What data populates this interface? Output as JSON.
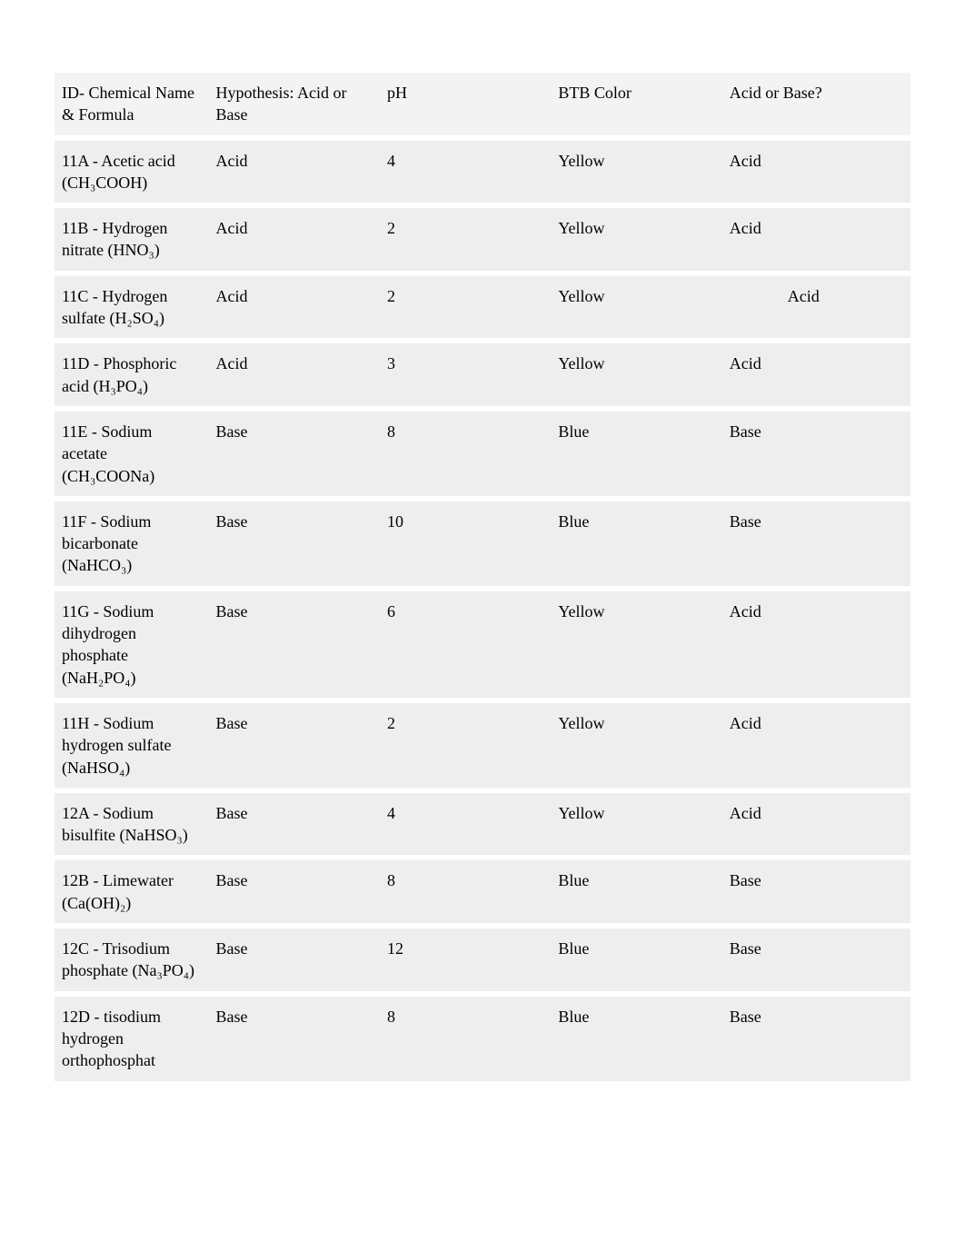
{
  "table": {
    "background_color": "#ffffff",
    "row_bg": "#eeeeee",
    "header_bg": "#f3f3f3",
    "separator_color": "#ffffff",
    "text_color": "#000000",
    "font_family": "Georgia, Times New Roman, serif",
    "font_size_pt": 14,
    "column_widths_pct": [
      18,
      20,
      20,
      20,
      22
    ],
    "columns": [
      "ID- Chemical Name & Formula",
      "Hypothesis: Acid or Base",
      "pH",
      "BTB Color",
      "Acid or Base?"
    ],
    "rows": [
      {
        "id": "11A - Acetic acid (CH₃COOH)",
        "hyp": "Acid",
        "ph": "4",
        "btb": "Yellow",
        "res": "Acid",
        "indent": false
      },
      {
        "id": "11B - Hydrogen nitrate (HNO₃)",
        "hyp": "Acid",
        "ph": "2",
        "btb": "Yellow",
        "res": "Acid",
        "indent": false
      },
      {
        "id": "11C - Hydrogen sulfate (H₂SO₄)",
        "hyp": "Acid",
        "ph": "2",
        "btb": "Yellow",
        "res": "Acid",
        "indent": true
      },
      {
        "id": "11D - Phosphoric acid (H₃PO₄)",
        "hyp": "Acid",
        "ph": "3",
        "btb": "Yellow",
        "res": "Acid",
        "indent": false
      },
      {
        "id": "11E - Sodium acetate (CH₃COONa)",
        "hyp": "Base",
        "ph": "8",
        "btb": "Blue",
        "res": "Base",
        "indent": false
      },
      {
        "id": "11F - Sodium bicarbonate (NaHCO₃)",
        "hyp": "Base",
        "ph": "10",
        "btb": "Blue",
        "res": "Base",
        "indent": false
      },
      {
        "id": "11G - Sodium dihydrogen phosphate (NaH₂PO₄)",
        "hyp": "Base",
        "ph": "6",
        "btb": "Yellow",
        "res": "Acid",
        "indent": false
      },
      {
        "id": "11H - Sodium hydrogen sulfate (NaHSO₄)",
        "hyp": "Base",
        "ph": "2",
        "btb": "Yellow",
        "res": "Acid",
        "indent": false
      },
      {
        "id": "12A - Sodium bisulfite (NaHSO₃)",
        "hyp": "Base",
        "ph": "4",
        "btb": "Yellow",
        "res": "Acid",
        "indent": false
      },
      {
        "id": "12B - Limewater (Ca(OH)₂)",
        "hyp": "Base",
        "ph": "8",
        "btb": "Blue",
        "res": "Base",
        "indent": false
      },
      {
        "id": "12C - Trisodium phosphate (Na₃PO₄)",
        "hyp": "Base",
        "ph": "12",
        "btb": "Blue",
        "res": "Base",
        "indent": false
      },
      {
        "id": "12D - tisodium hydrogen orthophosphat",
        "hyp": "Base",
        "ph": "8",
        "btb": "Blue",
        "res": "Base",
        "indent": false
      }
    ]
  }
}
